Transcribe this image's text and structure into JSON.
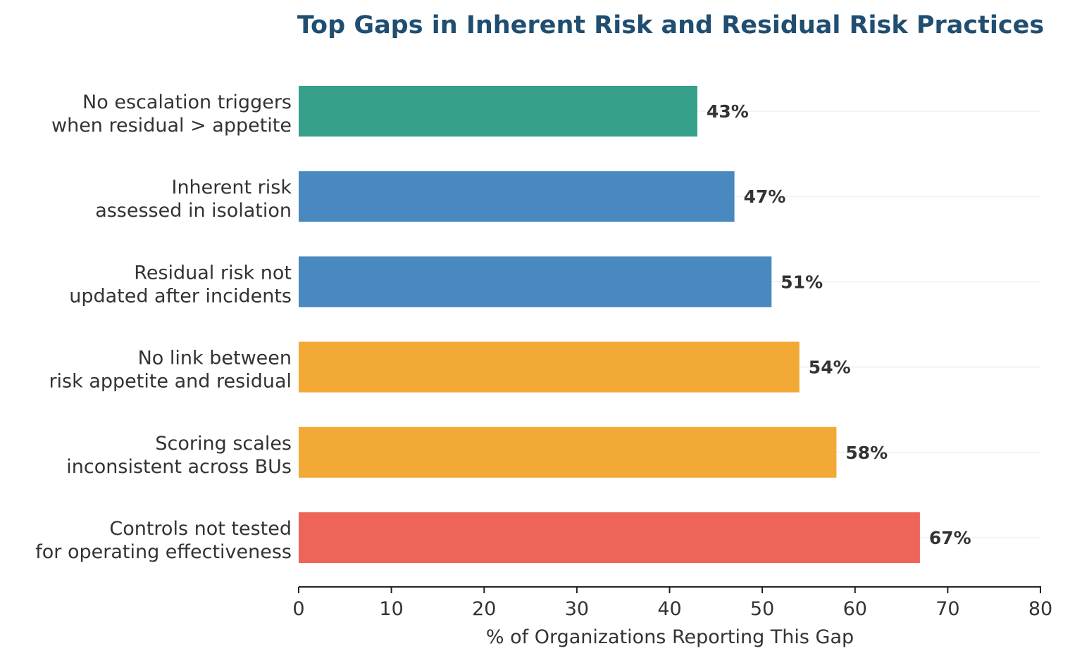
{
  "chart_data": {
    "type": "bar",
    "orientation": "horizontal",
    "title": "Top Gaps in Inherent Risk and Residual Risk Practices",
    "xlabel": "% of Organizations Reporting This Gap",
    "ylabel": "",
    "xlim": [
      0,
      80
    ],
    "xticks": [
      0,
      10,
      20,
      30,
      40,
      50,
      60,
      70,
      80
    ],
    "grid": "horizontal lines at each category",
    "categories": [
      [
        "No escalation triggers",
        "when residual > appetite"
      ],
      [
        "Inherent risk",
        "assessed in isolation"
      ],
      [
        "Residual risk not",
        "updated after incidents"
      ],
      [
        "No link between",
        "risk appetite and residual"
      ],
      [
        "Scoring scales",
        "inconsistent across BUs"
      ],
      [
        "Controls not tested",
        "for operating effectiveness"
      ]
    ],
    "values": [
      43,
      47,
      51,
      54,
      58,
      67
    ],
    "value_labels": [
      "43%",
      "47%",
      "51%",
      "54%",
      "58%",
      "67%"
    ],
    "colors": [
      "#36a08a",
      "#4a88c0",
      "#4a88c0",
      "#f2a935",
      "#f2a935",
      "#ec6558"
    ]
  },
  "style": {
    "grid_color": "#e6ebf5",
    "axis_color": "#222222",
    "title_color": "#1f4e70"
  }
}
